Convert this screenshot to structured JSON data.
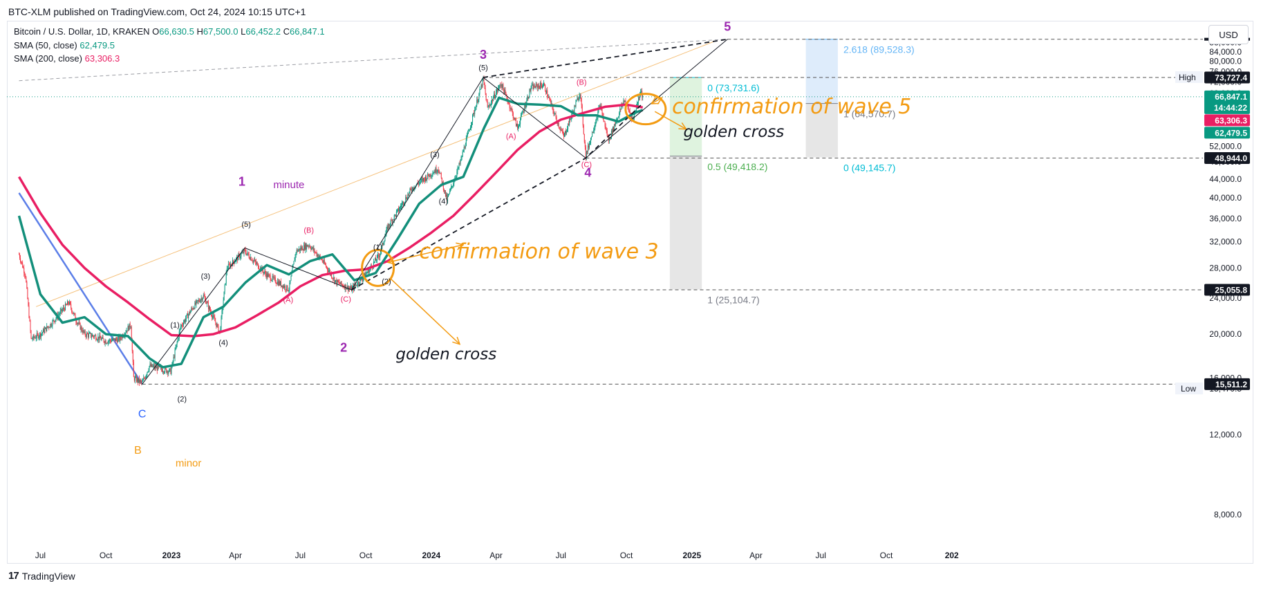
{
  "header": {
    "publisher": "BTC-XLM published on TradingView.com, Oct 24, 2024 10:15 UTC+1"
  },
  "legend": {
    "symbol": "Bitcoin / U.S. Dollar, 1D, KRAKEN",
    "o_label": "O",
    "o_value": "66,630.5",
    "h_label": "H",
    "h_value": "67,500.0",
    "l_label": "L",
    "l_value": "66,452.2",
    "c_label": "C",
    "c_value": "66,847.1",
    "sma50_label": "SMA (50, close)",
    "sma50_value": "62,479.5",
    "sma200_label": "SMA (200, close)",
    "sma200_value": "63,306.3"
  },
  "currency_button": "USD",
  "footer": {
    "brand": "TradingView",
    "logo": "17"
  },
  "colors": {
    "up": "#089981",
    "down": "#f23645",
    "sma50": "#138f7b",
    "sma200": "#e91e63",
    "blue_line": "#5b7ee8",
    "orange_annot": "#f39b12",
    "wave_purple": "#9c27b0",
    "fib_teal": "#00bcd4",
    "fib_green": "#4caf50",
    "fib_blue": "#64b5f6",
    "fib_gray": "#787b86"
  },
  "chart_data": {
    "type": "candlestick",
    "symbol": "Bitcoin / U.S. Dollar",
    "interval": "1D",
    "y_scale": "log",
    "ylim": [
      6800,
      98000
    ],
    "y_ticks": [
      "8,000.0",
      "12,000.0",
      "16,000.0",
      "20,000.0",
      "24,000.0",
      "28,000.0",
      "32,000.0",
      "36,000.0",
      "40,000.0",
      "44,000.0",
      "48,000.0",
      "52,000.0",
      "56,000.0",
      "60,000.0",
      "64,000.0",
      "68,000.0",
      "72,000.0",
      "76,000.0",
      "80,000.0",
      "84,000.0",
      "88,000.0"
    ],
    "x_ticks": [
      "Jul",
      "Oct",
      "2023",
      "Apr",
      "Jul",
      "Oct",
      "2024",
      "Apr",
      "Jul",
      "Oct",
      "2025",
      "Apr",
      "Jul",
      "Oct",
      "202"
    ],
    "close_path": [
      [
        "2022-06-01",
        30000
      ],
      [
        "2022-06-10",
        27000
      ],
      [
        "2022-06-18",
        19500
      ],
      [
        "2022-07-01",
        20000
      ],
      [
        "2022-07-15",
        21000
      ],
      [
        "2022-08-10",
        23500
      ],
      [
        "2022-08-20",
        21500
      ],
      [
        "2022-09-01",
        20000
      ],
      [
        "2022-09-15",
        19800
      ],
      [
        "2022-10-01",
        19300
      ],
      [
        "2022-10-20",
        19500
      ],
      [
        "2022-11-05",
        21000
      ],
      [
        "2022-11-09",
        16000
      ],
      [
        "2022-11-21",
        15600
      ],
      [
        "2022-12-01",
        17000
      ],
      [
        "2022-12-31",
        16550
      ],
      [
        "2023-01-14",
        20800
      ],
      [
        "2023-02-01",
        23000
      ],
      [
        "2023-02-15",
        24300
      ],
      [
        "2023-03-10",
        20200
      ],
      [
        "2023-03-20",
        28000
      ],
      [
        "2023-04-14",
        30500
      ],
      [
        "2023-05-01",
        28500
      ],
      [
        "2023-05-15",
        27000
      ],
      [
        "2023-06-15",
        25100
      ],
      [
        "2023-06-25",
        30500
      ],
      [
        "2023-07-13",
        31500
      ],
      [
        "2023-07-31",
        29200
      ],
      [
        "2023-08-20",
        26100
      ],
      [
        "2023-09-11",
        25100
      ],
      [
        "2023-09-30",
        27000
      ],
      [
        "2023-10-20",
        29900
      ],
      [
        "2023-11-01",
        34500
      ],
      [
        "2023-12-05",
        42000
      ],
      [
        "2024-01-11",
        46500
      ],
      [
        "2024-01-23",
        39500
      ],
      [
        "2024-02-10",
        47500
      ],
      [
        "2024-02-29",
        61000
      ],
      [
        "2024-03-14",
        73000
      ],
      [
        "2024-03-20",
        63000
      ],
      [
        "2024-04-08",
        71500
      ],
      [
        "2024-04-20",
        64000
      ],
      [
        "2024-05-01",
        57000
      ],
      [
        "2024-05-20",
        70000
      ],
      [
        "2024-06-07",
        71000
      ],
      [
        "2024-06-24",
        60000
      ],
      [
        "2024-07-05",
        54500
      ],
      [
        "2024-07-28",
        68500
      ],
      [
        "2024-08-05",
        49500
      ],
      [
        "2024-08-25",
        64000
      ],
      [
        "2024-09-06",
        53500
      ],
      [
        "2024-09-28",
        65800
      ],
      [
        "2024-10-10",
        59500
      ],
      [
        "2024-10-21",
        69000
      ],
      [
        "2024-10-24",
        66847.1
      ]
    ],
    "sma50_path": [
      [
        "2022-06-01",
        36500
      ],
      [
        "2022-07-01",
        24500
      ],
      [
        "2022-08-01",
        21200
      ],
      [
        "2022-09-01",
        21800
      ],
      [
        "2022-10-01",
        20000
      ],
      [
        "2022-11-01",
        19800
      ],
      [
        "2022-12-01",
        17700
      ],
      [
        "2022-12-20",
        16900
      ],
      [
        "2023-01-15",
        17200
      ],
      [
        "2023-02-15",
        21800
      ],
      [
        "2023-03-15",
        23000
      ],
      [
        "2023-04-15",
        26000
      ],
      [
        "2023-05-15",
        28400
      ],
      [
        "2023-06-15",
        27100
      ],
      [
        "2023-07-15",
        29000
      ],
      [
        "2023-08-15",
        30000
      ],
      [
        "2023-09-15",
        26300
      ],
      [
        "2023-10-15",
        27300
      ],
      [
        "2023-11-15",
        32500
      ],
      [
        "2023-12-15",
        38800
      ],
      [
        "2024-01-15",
        42700
      ],
      [
        "2024-02-15",
        44500
      ],
      [
        "2024-03-15",
        57000
      ],
      [
        "2024-04-05",
        66500
      ],
      [
        "2024-05-01",
        64500
      ],
      [
        "2024-06-01",
        64200
      ],
      [
        "2024-07-01",
        63700
      ],
      [
        "2024-07-25",
        60800
      ],
      [
        "2024-08-20",
        60800
      ],
      [
        "2024-09-20",
        58900
      ],
      [
        "2024-10-15",
        61800
      ],
      [
        "2024-10-24",
        62479.5
      ]
    ],
    "sma200_path": [
      [
        "2022-06-01",
        44500
      ],
      [
        "2022-07-01",
        37000
      ],
      [
        "2022-08-01",
        31500
      ],
      [
        "2022-09-01",
        28000
      ],
      [
        "2022-10-01",
        25500
      ],
      [
        "2022-11-01",
        23500
      ],
      [
        "2022-12-01",
        21600
      ],
      [
        "2023-01-01",
        19900
      ],
      [
        "2023-02-01",
        19800
      ],
      [
        "2023-03-01",
        20000
      ],
      [
        "2023-04-01",
        20700
      ],
      [
        "2023-05-01",
        22000
      ],
      [
        "2023-06-01",
        23500
      ],
      [
        "2023-07-01",
        25500
      ],
      [
        "2023-08-01",
        27000
      ],
      [
        "2023-09-01",
        27600
      ],
      [
        "2023-10-01",
        27800
      ],
      [
        "2023-11-01",
        29000
      ],
      [
        "2023-12-01",
        31000
      ],
      [
        "2024-01-01",
        33500
      ],
      [
        "2024-02-01",
        36500
      ],
      [
        "2024-03-01",
        40500
      ],
      [
        "2024-04-01",
        45500
      ],
      [
        "2024-05-01",
        51000
      ],
      [
        "2024-06-01",
        56000
      ],
      [
        "2024-07-01",
        59500
      ],
      [
        "2024-08-01",
        61500
      ],
      [
        "2024-09-01",
        63500
      ],
      [
        "2024-10-01",
        64200
      ],
      [
        "2024-10-24",
        63306.3
      ]
    ],
    "blue_trend_line": [
      [
        "2022-06-01",
        41000
      ],
      [
        "2022-11-21",
        15511.2
      ]
    ],
    "upper_gray_trendline": [
      [
        "2022-06-01",
        72500
      ],
      [
        "2025-02-20",
        89528.3
      ]
    ],
    "orange_fib_line": [
      [
        "2022-06-25",
        23000
      ],
      [
        "2025-02-01",
        88500
      ]
    ],
    "wave_lines": [
      {
        "style": "solid",
        "points": [
          [
            "2022-11-21",
            15511.2
          ],
          [
            "2023-04-14",
            31000
          ],
          [
            "2023-09-11",
            25055.8
          ],
          [
            "2024-03-14",
            73727.4
          ],
          [
            "2024-08-05",
            48944.0
          ],
          [
            "2025-02-20",
            89528.3
          ]
        ]
      },
      {
        "style": "dashed",
        "points": [
          [
            "2024-03-14",
            73727.4
          ],
          [
            "2025-02-20",
            89528.3
          ]
        ]
      },
      {
        "style": "dashed",
        "points": [
          [
            "2023-09-11",
            25055.8
          ],
          [
            "2024-08-05",
            48944.0
          ],
          [
            "2024-10-22",
            64200
          ]
        ]
      }
    ],
    "horizontal_levels": [
      {
        "price": 73727.4,
        "label": "73,727.4",
        "from": "2024-03-14",
        "style": "dashed"
      },
      {
        "price": 48944.0,
        "label": "48,944.0",
        "from": "2024-08-05",
        "style": "dashed"
      },
      {
        "price": 25055.8,
        "label": "25,055.8",
        "from": "2023-09-11",
        "style": "dashed"
      },
      {
        "price": 15511.2,
        "label": "15,511.2",
        "from": "2022-11-21",
        "style": "dashed"
      },
      {
        "price": 89528.3,
        "label": "",
        "from": "2025-02-20",
        "style": "dashed"
      }
    ],
    "price_axis_tags": [
      {
        "price": 66847.1,
        "label": "66,847.1",
        "sub": "14:44:22",
        "color": "#089981"
      },
      {
        "price": 63306.3,
        "label": "63,306.3",
        "color": "#e91e63"
      },
      {
        "price": 62479.5,
        "label": "62,479.5",
        "color": "#089981"
      },
      {
        "price": 73727.4,
        "label": "73,727.4",
        "color": "#131722"
      },
      {
        "price": 48944.0,
        "label": "48,944.0",
        "color": "#131722"
      },
      {
        "price": 25055.8,
        "label": "25,055.8",
        "color": "#131722"
      },
      {
        "price": 15511.2,
        "label": "15,511.2",
        "color": "#131722"
      }
    ],
    "high_marker": {
      "label": "High",
      "value": "73,734.0",
      "price": 73734.0
    },
    "low_marker": {
      "label": "Low",
      "value": "15,470.5",
      "price": 15470.5
    },
    "fib_boxes": [
      {
        "from": "2024-12-01",
        "to": "2025-01-15",
        "top": 73731.6,
        "bottom": 49418.2,
        "fill": "#dff3df"
      },
      {
        "from": "2024-12-01",
        "to": "2025-01-15",
        "top": 49418.2,
        "bottom": 25104.7,
        "fill": "#e6e6e6"
      },
      {
        "from": "2025-06-10",
        "to": "2025-07-25",
        "top": 89528.3,
        "bottom": 64570.7,
        "fill": "#deecfb"
      },
      {
        "from": "2025-06-10",
        "to": "2025-07-25",
        "top": 64570.7,
        "bottom": 49145.7,
        "fill": "#e6e6e6"
      }
    ],
    "fib_labels": [
      {
        "text": "0 (73,731.6)",
        "date": "2025-01-15",
        "price": 73731.6,
        "color": "#00bcd4",
        "pos": "below"
      },
      {
        "text": "0.5 (49,418.2)",
        "date": "2025-01-15",
        "price": 49418.2,
        "color": "#4caf50",
        "pos": "below"
      },
      {
        "text": "1 (25,104.7)",
        "date": "2025-01-15",
        "price": 25104.7,
        "color": "#787b86",
        "pos": "below"
      },
      {
        "text": "2.618 (89,528.3)",
        "date": "2025-07-25",
        "price": 89528.3,
        "color": "#64b5f6",
        "pos": "below"
      },
      {
        "text": "1 (64,570.7)",
        "date": "2025-07-25",
        "price": 64570.7,
        "color": "#787b86",
        "pos": "below"
      },
      {
        "text": "0 (49,145.7)",
        "date": "2025-07-25",
        "price": 49145.7,
        "color": "#00bcd4",
        "pos": "below"
      }
    ],
    "wave_labels": [
      {
        "text": "5",
        "date": "2025-02-20",
        "price": 93500,
        "color": "#9c27b0",
        "size": 18,
        "bold": true
      },
      {
        "text": "3",
        "date": "2024-03-14",
        "price": 81000,
        "color": "#9c27b0",
        "size": 18,
        "bold": true
      },
      {
        "text": "4",
        "date": "2024-08-08",
        "price": 44500,
        "color": "#9c27b0",
        "size": 18,
        "bold": true
      },
      {
        "text": "1",
        "date": "2023-04-10",
        "price": 42500,
        "color": "#9c27b0",
        "size": 18,
        "bold": true
      },
      {
        "text": "2",
        "date": "2023-08-31",
        "price": 18300,
        "color": "#9c27b0",
        "size": 18,
        "bold": true
      },
      {
        "text": "minute",
        "date": "2023-06-15",
        "price": 42000,
        "color": "#9c27b0",
        "size": 15,
        "bold": false
      },
      {
        "text": "C",
        "date": "2022-11-21",
        "price": 13100,
        "color": "#2962ff",
        "size": 16,
        "bold": false
      },
      {
        "text": "B",
        "date": "2022-11-15",
        "price": 10900,
        "color": "#f39b12",
        "size": 16,
        "bold": false
      },
      {
        "text": "minor",
        "date": "2023-01-25",
        "price": 10200,
        "color": "#f39b12",
        "size": 15,
        "bold": false
      },
      {
        "text": "(5)",
        "date": "2024-03-14",
        "price": 76500,
        "color": "#131722",
        "size": 11,
        "bold": false
      },
      {
        "text": "(3)",
        "date": "2024-01-06",
        "price": 49200,
        "color": "#131722",
        "size": 11,
        "bold": false
      },
      {
        "text": "(4)",
        "date": "2024-01-18",
        "price": 38800,
        "color": "#131722",
        "size": 11,
        "bold": false
      },
      {
        "text": "(1)",
        "date": "2023-10-18",
        "price": 30700,
        "color": "#131722",
        "size": 11,
        "bold": false
      },
      {
        "text": "(2)",
        "date": "2023-10-30",
        "price": 25800,
        "color": "#131722",
        "size": 11,
        "bold": false
      },
      {
        "text": "(5)",
        "date": "2023-04-16",
        "price": 34500,
        "color": "#131722",
        "size": 11,
        "bold": false
      },
      {
        "text": "(3)",
        "date": "2023-02-18",
        "price": 26500,
        "color": "#131722",
        "size": 11,
        "bold": false
      },
      {
        "text": "(4)",
        "date": "2023-03-15",
        "price": 18900,
        "color": "#131722",
        "size": 11,
        "bold": false
      },
      {
        "text": "(1)",
        "date": "2023-01-06",
        "price": 20700,
        "color": "#131722",
        "size": 11,
        "bold": false
      },
      {
        "text": "(2)",
        "date": "2023-01-16",
        "price": 14200,
        "color": "#131722",
        "size": 11,
        "bold": false
      },
      {
        "text": "(B)",
        "date": "2023-07-13",
        "price": 33500,
        "color": "#e91e63",
        "size": 11,
        "bold": false
      },
      {
        "text": "(A)",
        "date": "2023-06-14",
        "price": 23500,
        "color": "#e91e63",
        "size": 11,
        "bold": false
      },
      {
        "text": "(C)",
        "date": "2023-09-03",
        "price": 23600,
        "color": "#e91e63",
        "size": 11,
        "bold": false
      },
      {
        "text": "(A)",
        "date": "2024-04-22",
        "price": 54000,
        "color": "#e91e63",
        "size": 11,
        "bold": false
      },
      {
        "text": "(B)",
        "date": "2024-07-30",
        "price": 71000,
        "color": "#e91e63",
        "size": 11,
        "bold": false
      },
      {
        "text": "(C)",
        "date": "2024-08-06",
        "price": 46800,
        "color": "#e91e63",
        "size": 11,
        "bold": false
      }
    ],
    "annotations": [
      {
        "text": "confirmation of wave 5",
        "date": "2024-12-04",
        "price": 63700,
        "color": "#f39b12",
        "size": 30,
        "italic": true,
        "name": "wave5-confirmation"
      },
      {
        "text": "confirmation of wave 3",
        "date": "2023-12-15",
        "price": 30500,
        "color": "#f39b12",
        "size": 30,
        "italic": true,
        "name": "wave3-confirmation"
      },
      {
        "text": "golden cross",
        "date": "2024-12-20",
        "price": 56000,
        "color": "#131722",
        "size": 23,
        "italic": true,
        "name": "golden-cross-2024"
      },
      {
        "text": "golden cross",
        "date": "2023-11-12",
        "price": 18100,
        "color": "#131722",
        "size": 23,
        "italic": true,
        "name": "golden-cross-2023"
      }
    ],
    "orange_circles": [
      {
        "date": "2023-10-18",
        "price": 28000,
        "rx": 23,
        "ry": 26
      },
      {
        "date": "2024-10-28",
        "price": 62800,
        "rx": 29,
        "ry": 22
      }
    ],
    "orange_arrows": [
      {
        "from": [
          "2023-11-01",
          28800
        ],
        "to": [
          "2024-02-15",
          31500
        ],
        "double": true
      },
      {
        "from": [
          "2023-11-05",
          26500
        ],
        "to": [
          "2024-02-10",
          19000
        ],
        "double": false
      },
      {
        "from": [
          "2024-11-20",
          66500
        ],
        "to": [
          "2024-11-05",
          64500
        ],
        "double": true
      },
      {
        "from": [
          "2024-11-10",
          62000
        ],
        "to": [
          "2024-12-24",
          56700
        ],
        "double": false
      }
    ]
  }
}
